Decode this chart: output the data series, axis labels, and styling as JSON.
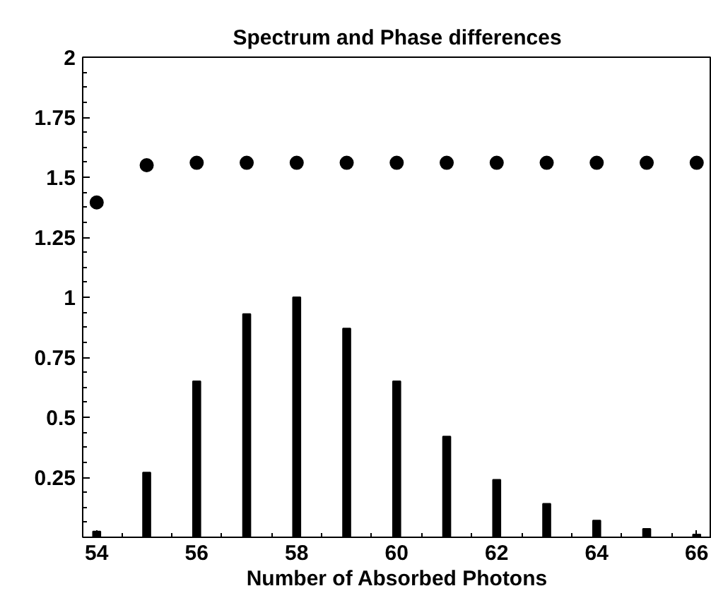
{
  "chart_data": {
    "type": "bar",
    "title": "Spectrum and Phase differences",
    "xlabel": "Number of Absorbed Photons",
    "x": [
      54,
      55,
      56,
      57,
      58,
      59,
      60,
      61,
      62,
      63,
      64,
      65,
      66
    ],
    "series": [
      {
        "color": "#000000",
        "values": [
          0.024,
          0.27,
          0.65,
          0.93,
          1.0,
          0.87,
          0.65,
          0.42,
          0.24,
          0.14,
          0.07,
          0.035,
          0.012
        ]
      },
      {
        "type": "scatter",
        "color": "#000000",
        "marker": "circle",
        "values": [
          1.395,
          1.55,
          1.56,
          1.56,
          1.56,
          1.56,
          1.56,
          1.56,
          1.56,
          1.56,
          1.56,
          1.56,
          1.56
        ]
      }
    ],
    "xlim": [
      53.72,
      66.3
    ],
    "ylim": [
      0,
      2
    ],
    "xticks": [
      54,
      56,
      58,
      60,
      62,
      64,
      66
    ],
    "yticks": [
      0.25,
      0.5,
      0.75,
      1,
      1.25,
      1.5,
      1.75,
      2
    ],
    "grid": false
  }
}
